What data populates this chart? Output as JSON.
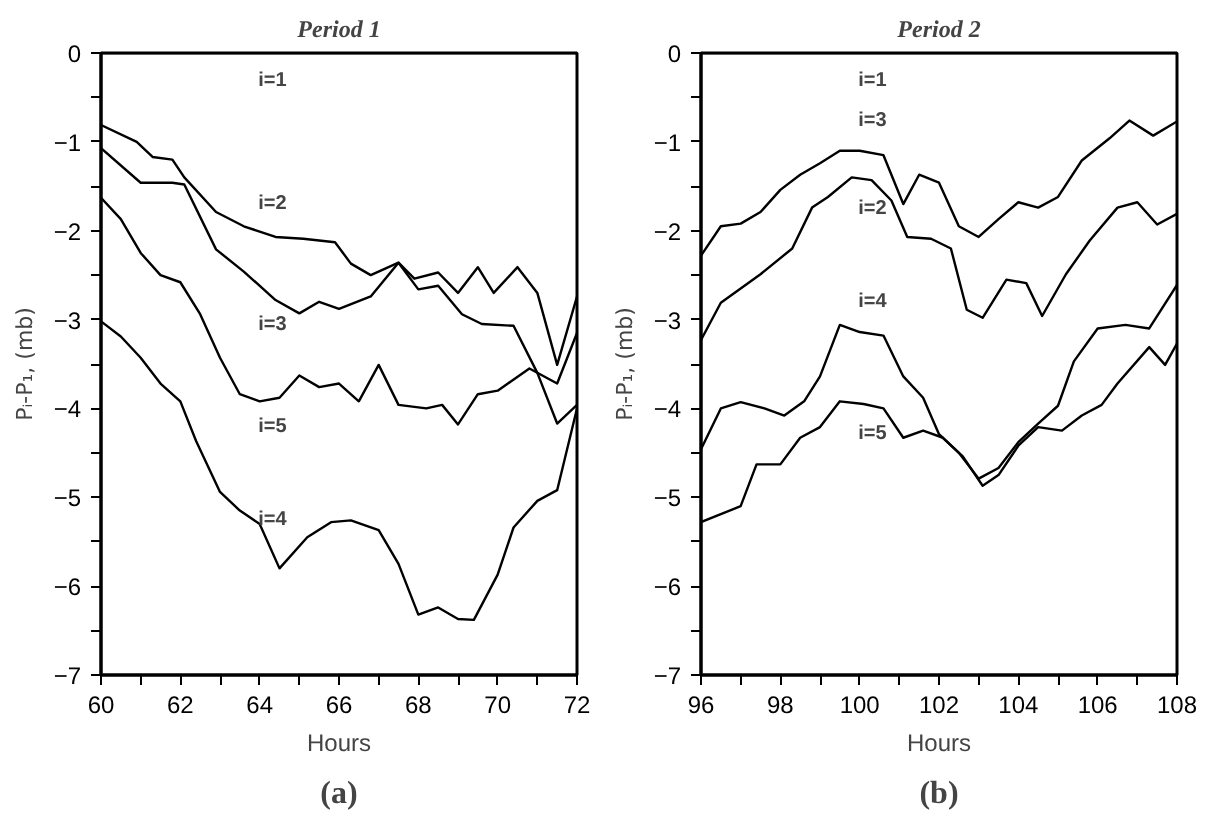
{
  "chart_data": [
    {
      "type": "line",
      "title": "Period 1",
      "xlabel": "Hours",
      "ylabel": "Pᵢ-P₁, (mb)",
      "xlim": [
        60,
        72
      ],
      "ylim": [
        -7,
        0
      ],
      "xticks": [
        60,
        {
          "value": 61,
          "label": null
        },
        62,
        {
          "value": 63,
          "label": null
        },
        64,
        {
          "value": 65,
          "label": null
        },
        66,
        {
          "value": 67,
          "label": null
        },
        68,
        {
          "value": 69,
          "label": null
        },
        70,
        {
          "value": 71,
          "label": null
        },
        72
      ],
      "yticks": [
        -7,
        {
          "value": -6.5,
          "label": null
        },
        -6,
        {
          "value": -5.5,
          "label": null
        },
        -5,
        {
          "value": -4.5,
          "label": null
        },
        -4,
        {
          "value": -3.5,
          "label": null
        },
        -3,
        {
          "value": -2.5,
          "label": null
        },
        -2,
        {
          "value": -1.5,
          "label": null
        },
        -1,
        {
          "value": -0.5,
          "label": null
        },
        0
      ],
      "series": [
        {
          "name": "i=1",
          "color": "#000000",
          "x": [
            60,
            72
          ],
          "values": [
            0,
            0
          ]
        },
        {
          "name": "i=2",
          "color": "#000000",
          "x": [
            60,
            60.9,
            61.3,
            61.8,
            62.1,
            62.9,
            63.6,
            64.4,
            65.1,
            65.9,
            66.3,
            66.8,
            67.5,
            67.9,
            68.5,
            69,
            69.5,
            69.9,
            70.5,
            71,
            71.5,
            72
          ],
          "values": [
            -0.81,
            -1.0,
            -1.17,
            -1.2,
            -1.4,
            -1.79,
            -1.95,
            -2.07,
            -2.09,
            -2.13,
            -2.37,
            -2.5,
            -2.36,
            -2.54,
            -2.47,
            -2.7,
            -2.41,
            -2.7,
            -2.41,
            -2.7,
            -3.51,
            -2.74
          ]
        },
        {
          "name": "i=3",
          "color": "#000000",
          "x": [
            60,
            61,
            61.8,
            62.1,
            62.9,
            63.6,
            64.4,
            65,
            65.5,
            66,
            66.8,
            67.5,
            68,
            68.5,
            69.1,
            69.6,
            70.4,
            71,
            71.5,
            72
          ],
          "values": [
            -1.07,
            -1.46,
            -1.46,
            -1.48,
            -2.21,
            -2.46,
            -2.78,
            -2.93,
            -2.8,
            -2.88,
            -2.74,
            -2.36,
            -2.66,
            -2.62,
            -2.94,
            -3.05,
            -3.07,
            -3.6,
            -4.17,
            -3.96
          ]
        },
        {
          "name": "i=5",
          "color": "#000000",
          "x": [
            60,
            60.5,
            61,
            61.5,
            62,
            62.5,
            63,
            63.5,
            64,
            64.5,
            65,
            65.5,
            66,
            66.5,
            67,
            67.5,
            68.2,
            68.6,
            69,
            69.5,
            70,
            70.8,
            71.5,
            72
          ],
          "values": [
            -1.63,
            -1.87,
            -2.25,
            -2.5,
            -2.58,
            -2.94,
            -3.43,
            -3.84,
            -3.92,
            -3.88,
            -3.63,
            -3.76,
            -3.72,
            -3.92,
            -3.51,
            -3.96,
            -4.0,
            -3.96,
            -4.18,
            -3.84,
            -3.8,
            -3.55,
            -3.72,
            -3.15
          ]
        },
        {
          "name": "i=4",
          "color": "#000000",
          "x": [
            60,
            60.5,
            61,
            61.5,
            62,
            62.4,
            63,
            63.5,
            64,
            64.5,
            65.2,
            65.8,
            66.3,
            67,
            67.5,
            68,
            68.5,
            69,
            69.4,
            70,
            70.4,
            71,
            71.5,
            72
          ],
          "values": [
            -3.02,
            -3.19,
            -3.43,
            -3.72,
            -3.92,
            -4.37,
            -4.94,
            -5.15,
            -5.3,
            -5.8,
            -5.45,
            -5.28,
            -5.26,
            -5.37,
            -5.75,
            -6.32,
            -6.24,
            -6.37,
            -6.38,
            -5.87,
            -5.34,
            -5.04,
            -4.92,
            -4.0
          ]
        }
      ],
      "annotations": [
        "(a)"
      ]
    },
    {
      "type": "line",
      "title": "Period 2",
      "xlabel": "Hours",
      "ylabel": "Pᵢ-P₁, (mb)",
      "xlim": [
        96,
        108
      ],
      "ylim": [
        -7,
        0
      ],
      "xticks": [
        96,
        {
          "value": 97,
          "label": null
        },
        98,
        {
          "value": 99,
          "label": null
        },
        100,
        {
          "value": 101,
          "label": null
        },
        102,
        {
          "value": 103,
          "label": null
        },
        104,
        {
          "value": 105,
          "label": null
        },
        106,
        {
          "value": 107,
          "label": null
        },
        108
      ],
      "yticks": [
        -7,
        {
          "value": -6.5,
          "label": null
        },
        -6,
        {
          "value": -5.5,
          "label": null
        },
        -5,
        {
          "value": -4.5,
          "label": null
        },
        -4,
        {
          "value": -3.5,
          "label": null
        },
        -3,
        {
          "value": -2.5,
          "label": null
        },
        -2,
        {
          "value": -1.5,
          "label": null
        },
        -1,
        {
          "value": -0.5,
          "label": null
        },
        0
      ],
      "series": [
        {
          "name": "i=1",
          "color": "#000000",
          "x": [
            96,
            108
          ],
          "values": [
            0,
            0
          ]
        },
        {
          "name": "i=3",
          "color": "#000000",
          "x": [
            96,
            96.5,
            97,
            97.5,
            98,
            98.5,
            99,
            99.5,
            100,
            100.6,
            101.1,
            101.5,
            102,
            102.5,
            103,
            103.5,
            104,
            104.5,
            105,
            105.6,
            106.3,
            106.8,
            107.4,
            108
          ],
          "values": [
            -2.28,
            -1.95,
            -1.92,
            -1.79,
            -1.54,
            -1.37,
            -1.24,
            -1.1,
            -1.1,
            -1.15,
            -1.7,
            -1.37,
            -1.46,
            -1.95,
            -2.07,
            -1.87,
            -1.68,
            -1.74,
            -1.62,
            -1.21,
            -0.96,
            -0.76,
            -0.93,
            -0.77
          ]
        },
        {
          "name": "i=2",
          "color": "#000000",
          "x": [
            96,
            96.5,
            97.5,
            98.3,
            98.8,
            99.2,
            99.8,
            100.3,
            100.8,
            101.2,
            101.8,
            102.3,
            102.7,
            103.1,
            103.7,
            104.2,
            104.6,
            105.2,
            105.8,
            106.5,
            107,
            107.5,
            108
          ],
          "values": [
            -3.23,
            -2.81,
            -2.49,
            -2.2,
            -1.74,
            -1.62,
            -1.4,
            -1.43,
            -1.66,
            -2.07,
            -2.09,
            -2.2,
            -2.89,
            -2.98,
            -2.55,
            -2.59,
            -2.96,
            -2.49,
            -2.11,
            -1.74,
            -1.68,
            -1.93,
            -1.81
          ]
        },
        {
          "name": "i=4",
          "color": "#000000",
          "x": [
            96,
            96.5,
            97,
            97.6,
            98.1,
            98.6,
            99,
            99.5,
            100,
            100.6,
            101.1,
            101.6,
            102,
            102.5,
            103,
            103.5,
            104,
            104.5,
            105,
            105.4,
            106,
            106.7,
            107.3,
            108
          ],
          "values": [
            -4.46,
            -4.0,
            -3.93,
            -4.0,
            -4.08,
            -3.92,
            -3.64,
            -3.06,
            -3.14,
            -3.18,
            -3.64,
            -3.88,
            -4.29,
            -4.5,
            -4.79,
            -4.67,
            -4.38,
            -4.17,
            -3.97,
            -3.47,
            -3.1,
            -3.06,
            -3.1,
            -2.61
          ]
        },
        {
          "name": "i=5",
          "color": "#000000",
          "x": [
            96,
            96.5,
            97,
            97.4,
            98,
            98.5,
            99,
            99.5,
            100.1,
            100.6,
            101.1,
            101.6,
            102.1,
            102.6,
            103.1,
            103.5,
            104,
            104.5,
            105.1,
            105.6,
            106.1,
            106.5,
            107.3,
            107.7,
            108
          ],
          "values": [
            -5.28,
            -5.19,
            -5.1,
            -4.63,
            -4.63,
            -4.33,
            -4.21,
            -3.92,
            -3.95,
            -4.0,
            -4.33,
            -4.25,
            -4.33,
            -4.54,
            -4.87,
            -4.75,
            -4.42,
            -4.21,
            -4.25,
            -4.08,
            -3.96,
            -3.72,
            -3.31,
            -3.51,
            -3.27
          ]
        }
      ],
      "annotations": [
        "(b)"
      ]
    }
  ]
}
